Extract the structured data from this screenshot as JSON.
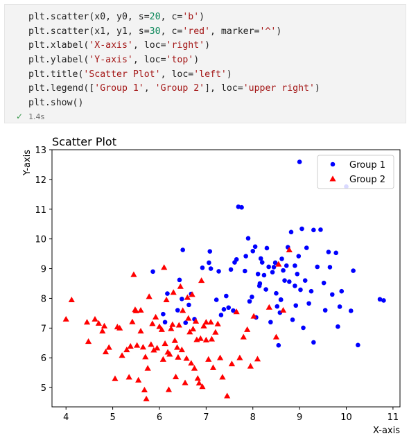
{
  "cell": {
    "lines": [
      [
        {
          "t": "plt.scatter(x0, y0, s=",
          "c": "#1f1f1f"
        },
        {
          "t": "20",
          "c": "#098658"
        },
        {
          "t": ", c=",
          "c": "#1f1f1f"
        },
        {
          "t": "'b'",
          "c": "#a31515"
        },
        {
          "t": ")",
          "c": "#1f1f1f"
        }
      ],
      [
        {
          "t": "plt.scatter(x1, y1, s=",
          "c": "#1f1f1f"
        },
        {
          "t": "30",
          "c": "#098658"
        },
        {
          "t": ", c=",
          "c": "#1f1f1f"
        },
        {
          "t": "'red'",
          "c": "#a31515"
        },
        {
          "t": ", marker=",
          "c": "#1f1f1f"
        },
        {
          "t": "'^'",
          "c": "#a31515"
        },
        {
          "t": ")",
          "c": "#1f1f1f"
        }
      ],
      [
        {
          "t": "plt.xlabel(",
          "c": "#1f1f1f"
        },
        {
          "t": "'X-axis'",
          "c": "#a31515"
        },
        {
          "t": ", loc=",
          "c": "#1f1f1f"
        },
        {
          "t": "'right'",
          "c": "#a31515"
        },
        {
          "t": ")",
          "c": "#1f1f1f"
        }
      ],
      [
        {
          "t": "plt.ylabel(",
          "c": "#1f1f1f"
        },
        {
          "t": "'Y-axis'",
          "c": "#a31515"
        },
        {
          "t": ", loc=",
          "c": "#1f1f1f"
        },
        {
          "t": "'top'",
          "c": "#a31515"
        },
        {
          "t": ")",
          "c": "#1f1f1f"
        }
      ],
      [
        {
          "t": "plt.title(",
          "c": "#1f1f1f"
        },
        {
          "t": "'Scatter Plot'",
          "c": "#a31515"
        },
        {
          "t": ", loc=",
          "c": "#1f1f1f"
        },
        {
          "t": "'left'",
          "c": "#a31515"
        },
        {
          "t": ")",
          "c": "#1f1f1f"
        }
      ],
      [
        {
          "t": "plt.legend([",
          "c": "#1f1f1f"
        },
        {
          "t": "'Group 1'",
          "c": "#a31515"
        },
        {
          "t": ", ",
          "c": "#1f1f1f"
        },
        {
          "t": "'Group 2'",
          "c": "#a31515"
        },
        {
          "t": "], loc=",
          "c": "#1f1f1f"
        },
        {
          "t": "'upper right'",
          "c": "#a31515"
        },
        {
          "t": ")",
          "c": "#1f1f1f"
        }
      ],
      [
        {
          "t": "plt.show()",
          "c": "#1f1f1f"
        }
      ]
    ],
    "status_icon": "check-icon",
    "exec_time": "1.4s"
  },
  "chart_data": {
    "type": "scatter",
    "title": "Scatter Plot",
    "title_loc": "left",
    "xlabel": "X-axis",
    "ylabel": "Y-axis",
    "xlim": [
      3.7,
      11.15
    ],
    "ylim": [
      4.35,
      13.0
    ],
    "xticks": [
      4,
      5,
      6,
      7,
      8,
      9,
      10,
      11
    ],
    "yticks": [
      5,
      6,
      7,
      8,
      9,
      10,
      11,
      12,
      13
    ],
    "grid": false,
    "legend_loc": "upper right",
    "series": [
      {
        "name": "Group 1",
        "marker": "circle",
        "color": "#0000ff",
        "points": [
          [
            5.86,
            8.9
          ],
          [
            6.08,
            7.47
          ],
          [
            6.12,
            7.2
          ],
          [
            6.17,
            8.16
          ],
          [
            6.39,
            7.6
          ],
          [
            6.5,
            9.63
          ],
          [
            6.43,
            8.62
          ],
          [
            6.48,
            7.98
          ],
          [
            6.56,
            7.18
          ],
          [
            6.63,
            7.78
          ],
          [
            6.68,
            8.15
          ],
          [
            6.75,
            7.3
          ],
          [
            6.92,
            9.03
          ],
          [
            7.06,
            9.2
          ],
          [
            7.08,
            9.58
          ],
          [
            7.1,
            9.0
          ],
          [
            7.22,
            7.95
          ],
          [
            7.27,
            8.91
          ],
          [
            7.32,
            7.44
          ],
          [
            7.38,
            7.63
          ],
          [
            7.43,
            8.08
          ],
          [
            7.48,
            7.69
          ],
          [
            7.53,
            8.97
          ],
          [
            7.58,
            7.59
          ],
          [
            7.61,
            9.21
          ],
          [
            7.65,
            9.31
          ],
          [
            7.69,
            11.08
          ],
          [
            7.76,
            11.06
          ],
          [
            7.83,
            8.92
          ],
          [
            7.85,
            9.42
          ],
          [
            7.9,
            10.02
          ],
          [
            7.93,
            7.9
          ],
          [
            7.98,
            8.05
          ],
          [
            8.0,
            9.59
          ],
          [
            8.05,
            9.74
          ],
          [
            8.07,
            7.36
          ],
          [
            8.11,
            8.82
          ],
          [
            8.14,
            8.42
          ],
          [
            8.17,
            9.34
          ],
          [
            8.2,
            9.21
          ],
          [
            8.24,
            8.78
          ],
          [
            8.28,
            8.3
          ],
          [
            8.3,
            9.69
          ],
          [
            8.34,
            9.06
          ],
          [
            8.38,
            7.2
          ],
          [
            8.42,
            8.88
          ],
          [
            8.45,
            9.05
          ],
          [
            8.48,
            9.2
          ],
          [
            8.5,
            8.17
          ],
          [
            8.52,
            7.73
          ],
          [
            8.55,
            6.42
          ],
          [
            8.58,
            7.52
          ],
          [
            8.6,
            7.96
          ],
          [
            8.62,
            9.33
          ],
          [
            8.65,
            8.94
          ],
          [
            8.68,
            8.6
          ],
          [
            8.72,
            9.1
          ],
          [
            8.75,
            9.72
          ],
          [
            8.78,
            8.56
          ],
          [
            8.82,
            10.23
          ],
          [
            8.85,
            7.28
          ],
          [
            8.9,
            8.42
          ],
          [
            8.92,
            7.76
          ],
          [
            8.95,
            8.82
          ],
          [
            8.98,
            9.42
          ],
          [
            9.02,
            8.29
          ],
          [
            9.05,
            10.34
          ],
          [
            9.08,
            7.01
          ],
          [
            9.12,
            8.6
          ],
          [
            9.15,
            9.7
          ],
          [
            9.0,
            12.59
          ],
          [
            9.2,
            7.83
          ],
          [
            9.25,
            8.24
          ],
          [
            9.3,
            6.52
          ],
          [
            9.38,
            9.06
          ],
          [
            9.45,
            10.31
          ],
          [
            9.52,
            8.52
          ],
          [
            9.55,
            7.6
          ],
          [
            9.62,
            9.56
          ],
          [
            9.7,
            8.13
          ],
          [
            9.78,
            9.53
          ],
          [
            9.82,
            7.05
          ],
          [
            9.86,
            7.72
          ],
          [
            9.9,
            8.24
          ],
          [
            10.0,
            11.76
          ],
          [
            10.1,
            7.58
          ],
          [
            10.15,
            8.93
          ],
          [
            10.25,
            6.43
          ],
          [
            10.72,
            7.97
          ],
          [
            10.8,
            7.93
          ],
          [
            9.3,
            10.3
          ],
          [
            8.9,
            9.1
          ],
          [
            9.65,
            9.05
          ],
          [
            8.6,
            7.95
          ],
          [
            8.15,
            8.5
          ]
        ]
      },
      {
        "name": "Group 2",
        "marker": "triangle",
        "color": "#ff0000",
        "points": [
          [
            4.0,
            7.3
          ],
          [
            4.12,
            7.95
          ],
          [
            4.45,
            7.2
          ],
          [
            4.48,
            6.55
          ],
          [
            4.62,
            7.3
          ],
          [
            4.7,
            7.16
          ],
          [
            4.78,
            6.9
          ],
          [
            4.82,
            7.07
          ],
          [
            4.85,
            6.2
          ],
          [
            4.92,
            6.35
          ],
          [
            5.05,
            5.3
          ],
          [
            5.1,
            7.04
          ],
          [
            5.15,
            7.0
          ],
          [
            5.2,
            6.08
          ],
          [
            5.3,
            6.27
          ],
          [
            5.35,
            5.35
          ],
          [
            5.38,
            6.39
          ],
          [
            5.42,
            7.21
          ],
          [
            5.45,
            8.8
          ],
          [
            5.48,
            7.62
          ],
          [
            5.5,
            7.58
          ],
          [
            5.52,
            6.42
          ],
          [
            5.55,
            5.25
          ],
          [
            5.6,
            6.9
          ],
          [
            5.65,
            6.36
          ],
          [
            5.68,
            4.92
          ],
          [
            5.7,
            6.03
          ],
          [
            5.72,
            4.62
          ],
          [
            5.75,
            5.65
          ],
          [
            5.78,
            8.06
          ],
          [
            5.82,
            6.45
          ],
          [
            5.85,
            7.15
          ],
          [
            5.88,
            6.26
          ],
          [
            5.92,
            7.37
          ],
          [
            5.95,
            6.33
          ],
          [
            6.0,
            7.05
          ],
          [
            6.05,
            6.95
          ],
          [
            6.08,
            5.95
          ],
          [
            6.1,
            9.04
          ],
          [
            6.12,
            6.48
          ],
          [
            6.15,
            7.95
          ],
          [
            6.18,
            6.19
          ],
          [
            6.2,
            4.93
          ],
          [
            6.22,
            6.12
          ],
          [
            6.25,
            6.98
          ],
          [
            6.28,
            7.12
          ],
          [
            6.3,
            8.2
          ],
          [
            6.33,
            6.58
          ],
          [
            6.35,
            5.36
          ],
          [
            6.38,
            6.35
          ],
          [
            6.4,
            6.02
          ],
          [
            6.42,
            7.1
          ],
          [
            6.45,
            8.4
          ],
          [
            6.48,
            6.27
          ],
          [
            6.5,
            7.59
          ],
          [
            6.55,
            5.16
          ],
          [
            6.58,
            5.98
          ],
          [
            6.6,
            8.03
          ],
          [
            6.62,
            7.33
          ],
          [
            6.65,
            6.87
          ],
          [
            6.68,
            5.82
          ],
          [
            6.7,
            8.13
          ],
          [
            6.72,
            6.97
          ],
          [
            6.75,
            5.65
          ],
          [
            6.78,
            7.23
          ],
          [
            6.8,
            6.61
          ],
          [
            6.82,
            5.31
          ],
          [
            6.85,
            5.15
          ],
          [
            6.88,
            6.65
          ],
          [
            6.9,
            8.6
          ],
          [
            6.92,
            5.03
          ],
          [
            6.95,
            7.07
          ],
          [
            7.0,
            6.6
          ],
          [
            7.05,
            5.95
          ],
          [
            7.1,
            7.2
          ],
          [
            7.12,
            6.63
          ],
          [
            7.15,
            5.67
          ],
          [
            7.2,
            6.86
          ],
          [
            7.25,
            7.14
          ],
          [
            7.3,
            6.0
          ],
          [
            7.35,
            5.35
          ],
          [
            7.45,
            4.72
          ],
          [
            7.55,
            5.8
          ],
          [
            7.65,
            7.55
          ],
          [
            7.72,
            6.0
          ],
          [
            7.8,
            6.7
          ],
          [
            7.88,
            6.95
          ],
          [
            7.95,
            5.72
          ],
          [
            8.02,
            7.4
          ],
          [
            8.1,
            5.96
          ],
          [
            8.5,
            6.7
          ],
          [
            8.55,
            9.15
          ],
          [
            8.65,
            7.6
          ],
          [
            8.78,
            9.63
          ],
          [
            8.35,
            7.7
          ],
          [
            5.6,
            7.6
          ],
          [
            7.0,
            7.2
          ]
        ]
      }
    ]
  }
}
